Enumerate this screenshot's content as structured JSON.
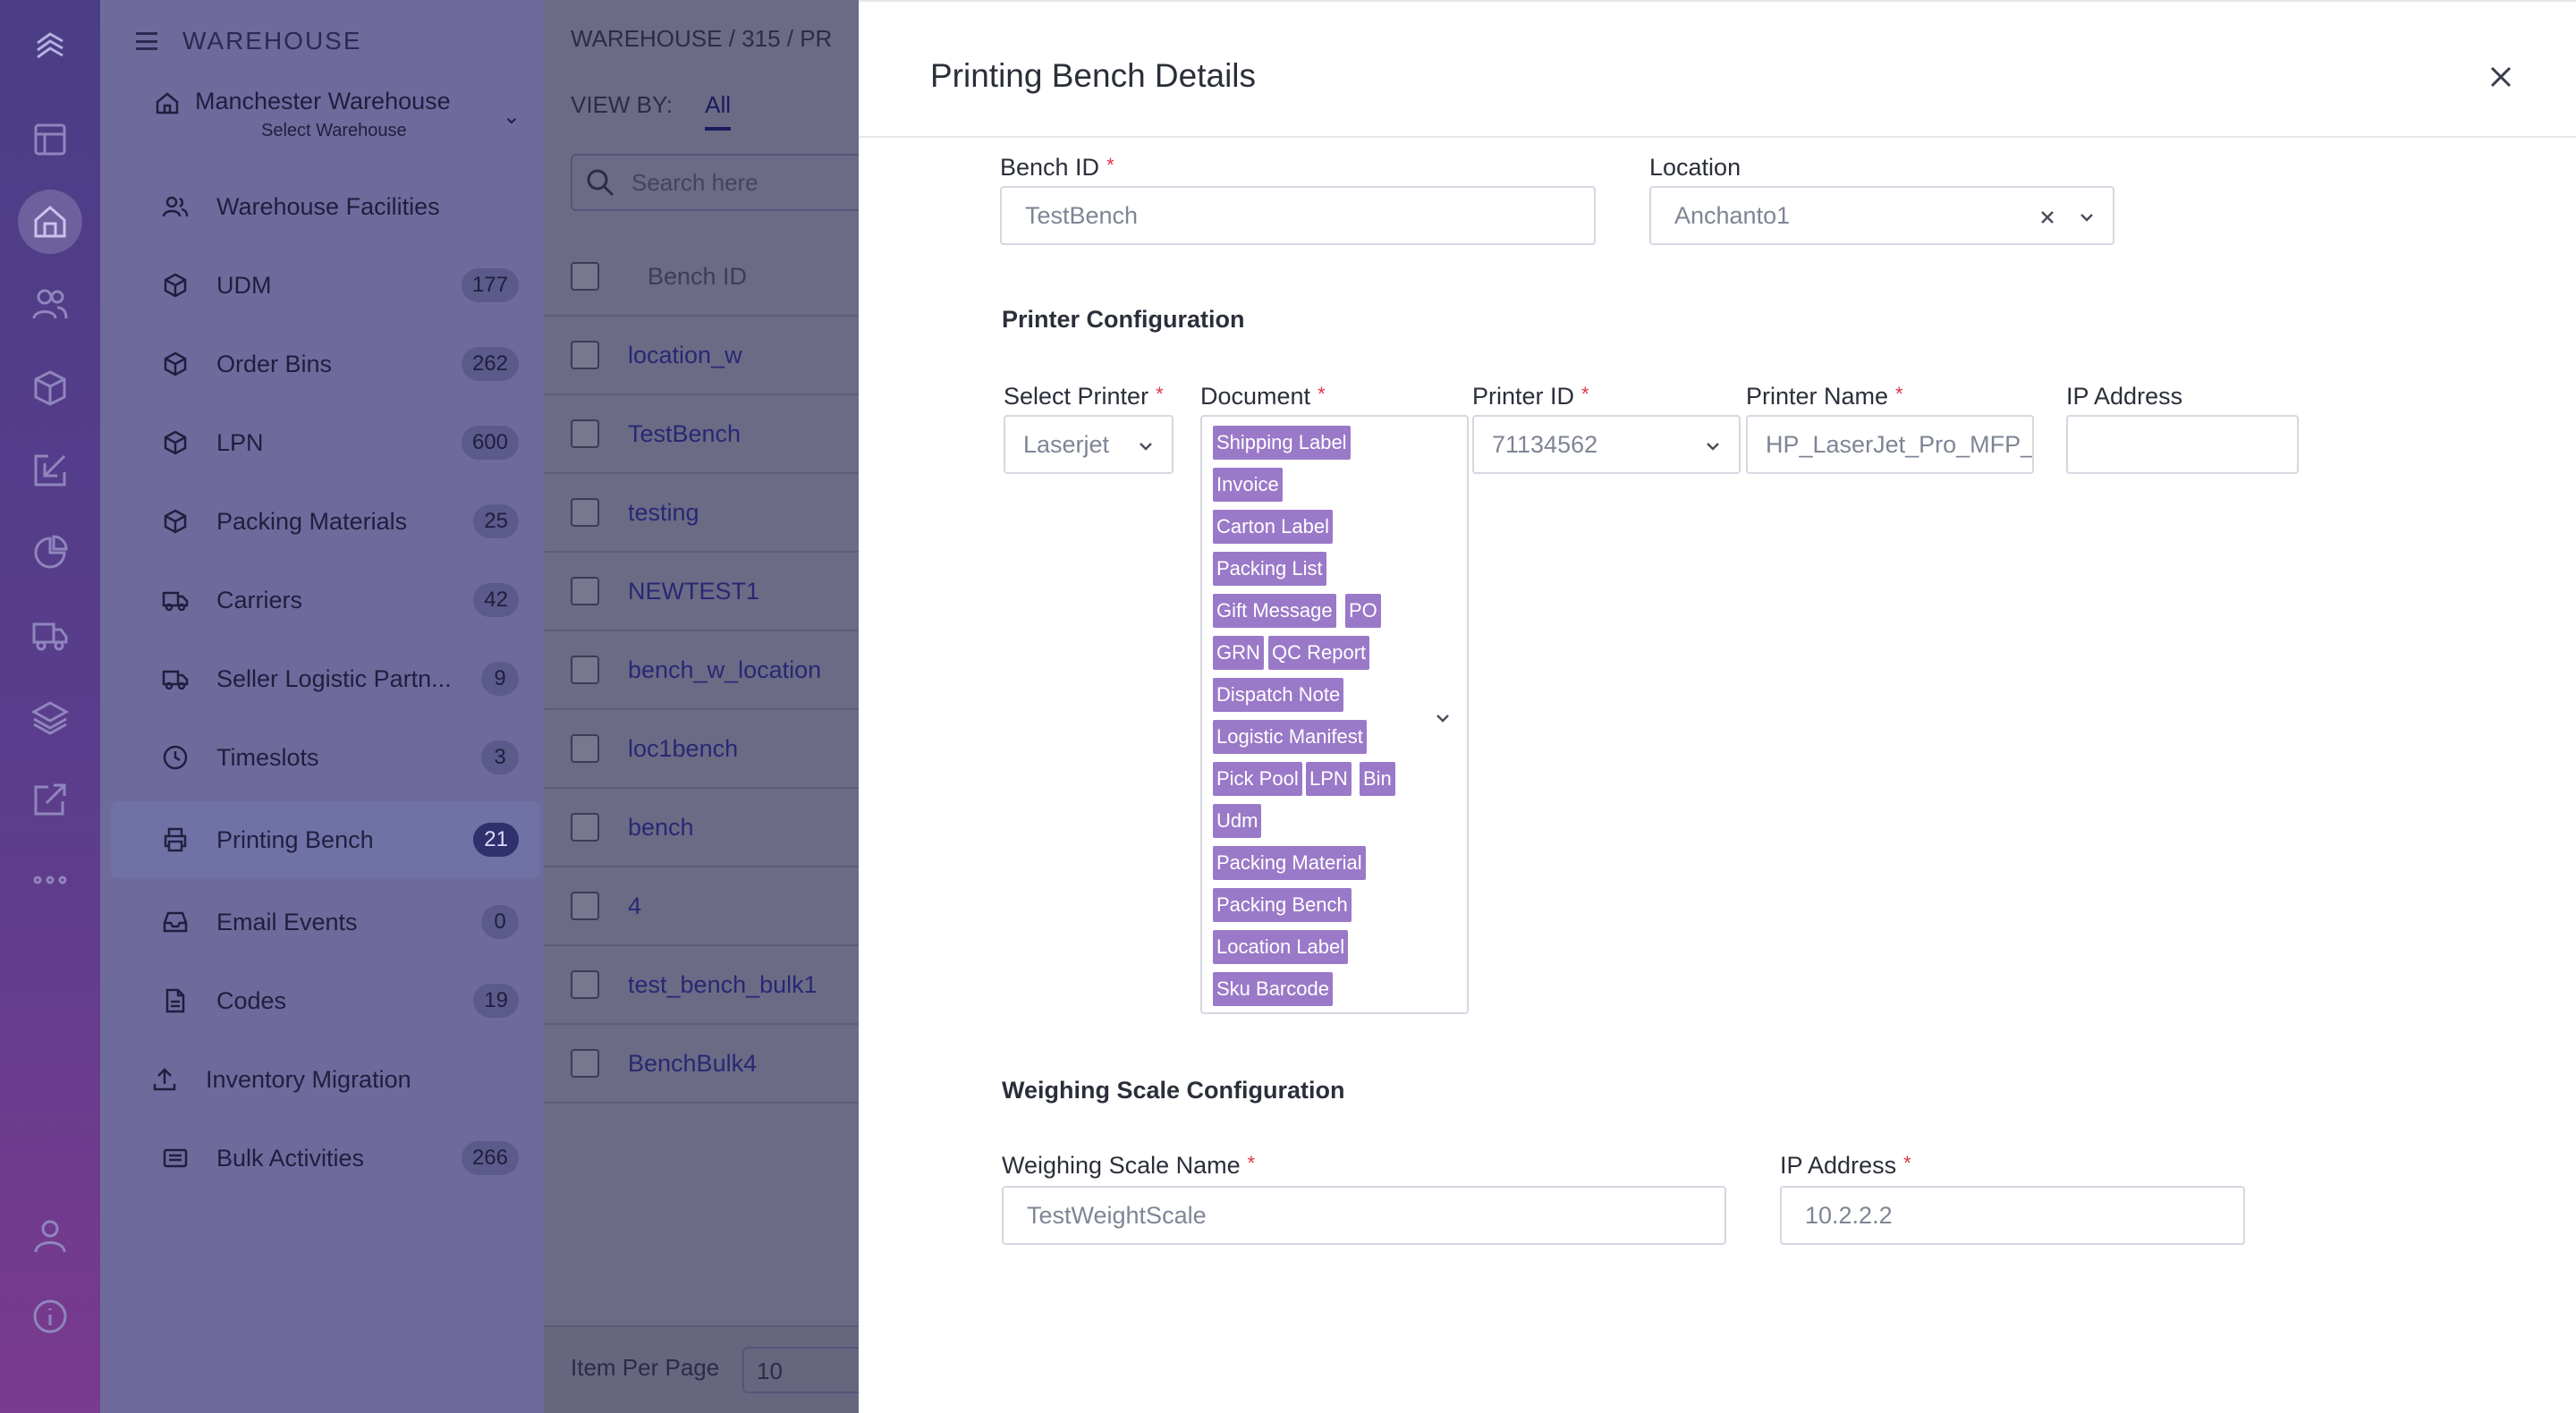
{
  "rail": {
    "icons": [
      "logo-icon",
      "dashboard-icon",
      "warehouse-icon",
      "users-icon",
      "box-icon",
      "inbound-icon",
      "reports-icon",
      "truck-icon",
      "layers-icon",
      "external-link-icon",
      "more-icon",
      "profile-icon",
      "info-icon"
    ]
  },
  "sidebar": {
    "title": "WAREHOUSE",
    "warehouse_name": "Manchester Warehouse",
    "warehouse_sub": "Select Warehouse",
    "items": [
      {
        "label": "Warehouse Facilities",
        "badge": ""
      },
      {
        "label": "UDM",
        "badge": "177"
      },
      {
        "label": "Order Bins",
        "badge": "262"
      },
      {
        "label": "LPN",
        "badge": "600"
      },
      {
        "label": "Packing Materials",
        "badge": "25"
      },
      {
        "label": "Carriers",
        "badge": "42"
      },
      {
        "label": "Seller Logistic Partn...",
        "badge": "9"
      },
      {
        "label": "Timeslots",
        "badge": "3"
      },
      {
        "label": "Printing Bench",
        "badge": "21"
      },
      {
        "label": "Email Events",
        "badge": "0"
      },
      {
        "label": "Codes",
        "badge": "19"
      },
      {
        "label": "Inventory Migration",
        "badge": ""
      },
      {
        "label": "Bulk Activities",
        "badge": "266"
      }
    ]
  },
  "list": {
    "breadcrumb": "WAREHOUSE  /  315  /  PR",
    "view_by_label": "VIEW BY:",
    "view_by_value": "All",
    "search_placeholder": "Search here",
    "column_header": "Bench ID",
    "rows": [
      "location_w",
      "TestBench",
      "testing",
      "NEWTEST1",
      "bench_w_location",
      "loc1bench",
      "bench",
      "4",
      "test_bench_bulk1",
      "BenchBulk4"
    ],
    "items_per_page_label": "Item Per Page",
    "items_per_page_value": "10"
  },
  "modal": {
    "title": "Printing Bench Details",
    "bench_id_label": "Bench ID",
    "bench_id_value": "TestBench",
    "location_label": "Location",
    "location_value": "Anchanto1",
    "printer_section": "Printer Configuration",
    "select_printer_label": "Select Printer",
    "select_printer_value": "Laserjet",
    "document_label": "Document",
    "documents": [
      "Shipping Label",
      "Invoice",
      "Carton Label",
      "Packing List",
      "Gift Message",
      "PO",
      "GRN",
      "QC Report",
      "Dispatch Note",
      "Logistic Manifest",
      "Pick Pool",
      "LPN",
      "Bin",
      "Udm",
      "Packing Material",
      "Packing Bench",
      "Location Label",
      "Sku Barcode"
    ],
    "printer_id_label": "Printer ID",
    "printer_id_value": "71134562",
    "printer_name_label": "Printer Name",
    "printer_name_value": "HP_LaserJet_Pro_MFP_",
    "ip_address_label": "IP Address",
    "ip_address_value": "",
    "scale_section": "Weighing Scale Configuration",
    "scale_name_label": "Weighing Scale Name",
    "scale_name_value": "TestWeightScale",
    "scale_ip_label": "IP Address",
    "scale_ip_value": "10.2.2.2",
    "required_mark": "*"
  },
  "colors": {
    "rail_top": "#4a3d86",
    "rail_bottom": "#7a3a8e",
    "sidebar_bg": "#6e6b9c",
    "chip_bg": "#9a79c8",
    "required": "#e0344a",
    "active_badge": "#2d2d66"
  }
}
